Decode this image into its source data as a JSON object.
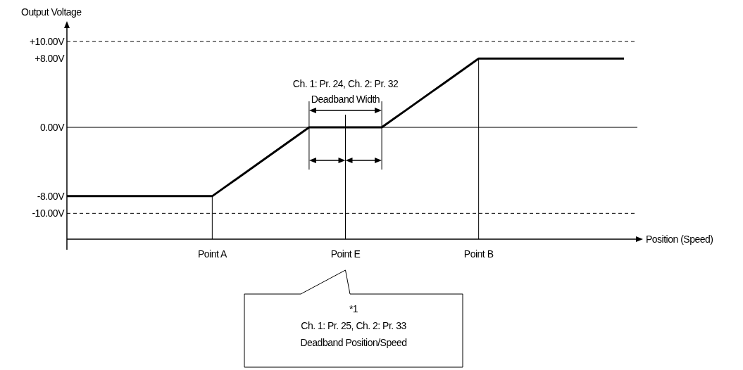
{
  "chart_data": {
    "type": "line",
    "xlabel": "Position (Speed)",
    "ylabel": "Output Voltage",
    "categories": [
      null,
      null,
      null,
      null,
      null,
      null,
      null,
      null,
      null,
      null,
      null,
      null,
      "Point A",
      null,
      null,
      null,
      null,
      null,
      null,
      null,
      null,
      null,
      null,
      "Point E",
      null,
      null,
      null,
      null,
      null,
      null,
      null,
      null,
      null,
      null,
      "Point B",
      null,
      null,
      null,
      null,
      null,
      null,
      null,
      null,
      null,
      null,
      null,
      null
    ],
    "ylim": [
      -13,
      11.7
    ],
    "yticks": [
      {
        "value": 10,
        "label": "+10.00V"
      },
      {
        "value": 8,
        "label": "+8.00V"
      },
      {
        "value": 0,
        "label": "0.00V"
      },
      {
        "value": -8,
        "label": "-8.00V"
      },
      {
        "value": -10,
        "label": "-10.00V"
      }
    ],
    "series": [
      {
        "color": "#000000",
        "values": [
          -8,
          -8,
          -8,
          -8,
          -8,
          -8,
          -8,
          -8,
          -8,
          -8,
          -8,
          -8,
          -8,
          -7,
          -6,
          -5,
          -4,
          -3,
          -2,
          -1,
          0,
          0,
          0,
          0,
          0,
          0,
          0,
          1,
          2,
          3,
          4,
          5,
          6,
          7,
          8,
          8,
          8,
          8,
          8,
          8,
          8,
          8,
          8,
          8,
          8,
          8,
          8
        ]
      }
    ],
    "ref_lines": [
      {
        "axis": "y",
        "value": 10,
        "line_style": "dashed",
        "color": "#000000"
      },
      {
        "axis": "y",
        "value": -10,
        "line_style": "dashed",
        "color": "#000000"
      },
      {
        "axis": "y",
        "value": 0,
        "line_style": "solid",
        "color": "#000000"
      }
    ],
    "annotations": [
      "Ch. 1: Pr. 24, Ch. 2: Pr. 32\nDeadband Width",
      "*1\nCh. 1: Pr. 25, Ch. 2: Pr. 33\nDeadband Position/Speed"
    ],
    "marker": "none",
    "line_style": "solid"
  }
}
